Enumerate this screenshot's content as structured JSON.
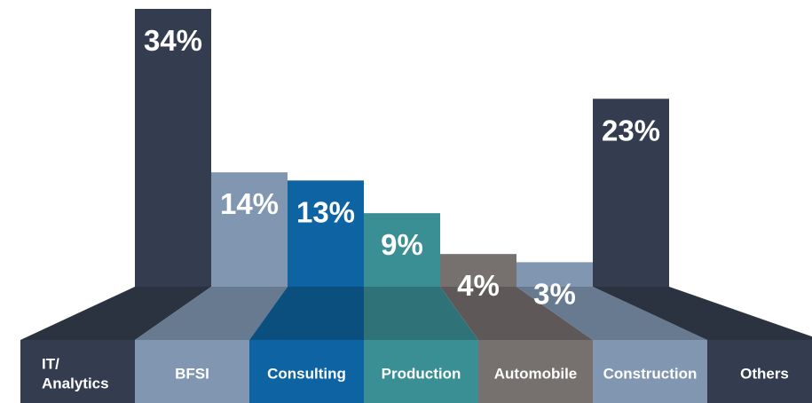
{
  "chart_data": {
    "type": "bar",
    "categories": [
      "IT/ Analytics",
      "BFSI",
      "Consulting",
      "Production",
      "Automobile",
      "Construction",
      "Others"
    ],
    "category_lines": [
      [
        "IT/",
        "Analytics"
      ],
      [
        "BFSI"
      ],
      [
        "Consulting"
      ],
      [
        "Production"
      ],
      [
        "Automobile"
      ],
      [
        "Construction"
      ],
      [
        "Others"
      ]
    ],
    "values": [
      34,
      14,
      13,
      9,
      4,
      3,
      23
    ],
    "value_labels": [
      "34%",
      "14%",
      "13%",
      "9%",
      "4%",
      "3%",
      "23%"
    ],
    "unit": "%",
    "ylim": [
      0,
      34
    ],
    "title": "",
    "xlabel": "",
    "ylabel": "",
    "grid": false,
    "legend": "none",
    "colors": {
      "bars": [
        "#343d4f",
        "#8196b0",
        "#0e64a2",
        "#3a8f95",
        "#76706f",
        "#8196b0",
        "#343d4f"
      ],
      "floor": [
        "#2b3240",
        "#687a90",
        "#0b4f7f",
        "#2f7378",
        "#5e5958",
        "#687a90",
        "#2b3240"
      ],
      "labels": [
        "#343d4f",
        "#8196b0",
        "#0e64a2",
        "#3a8f95",
        "#76706f",
        "#8196b0",
        "#343d4f"
      ],
      "text": "#ffffff"
    }
  }
}
